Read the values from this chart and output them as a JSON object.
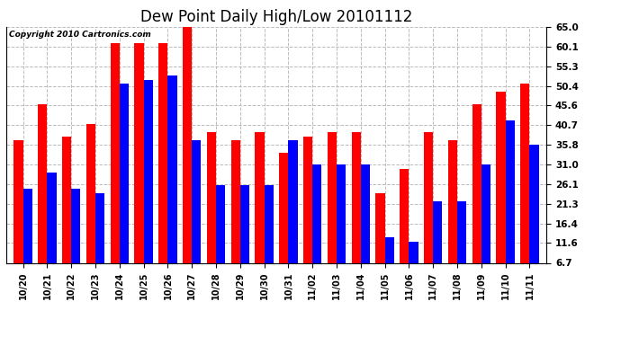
{
  "title": "Dew Point Daily High/Low 20101112",
  "copyright": "Copyright 2010 Cartronics.com",
  "categories": [
    "10/20",
    "10/21",
    "10/22",
    "10/23",
    "10/24",
    "10/25",
    "10/26",
    "10/27",
    "10/28",
    "10/29",
    "10/30",
    "10/31",
    "11/02",
    "11/03",
    "11/04",
    "11/05",
    "11/06",
    "11/07",
    "11/08",
    "11/09",
    "11/10",
    "11/11"
  ],
  "highs": [
    37,
    46,
    38,
    41,
    61,
    61,
    61,
    65,
    39,
    37,
    39,
    34,
    38,
    39,
    39,
    24,
    30,
    39,
    37,
    46,
    49,
    51
  ],
  "lows": [
    25,
    29,
    25,
    24,
    51,
    52,
    53,
    37,
    26,
    26,
    26,
    37,
    31,
    31,
    31,
    13,
    12,
    22,
    22,
    31,
    42,
    36
  ],
  "high_color": "#ff0000",
  "low_color": "#0000ff",
  "bg_color": "#ffffff",
  "plot_bg_color": "#ffffff",
  "yticks": [
    6.7,
    11.6,
    16.4,
    21.3,
    26.1,
    31.0,
    35.8,
    40.7,
    45.6,
    50.4,
    55.3,
    60.1,
    65.0
  ],
  "ymin": 6.7,
  "ymax": 65.0,
  "grid_color": "#bbbbbb",
  "title_fontsize": 12,
  "bar_width": 0.38
}
